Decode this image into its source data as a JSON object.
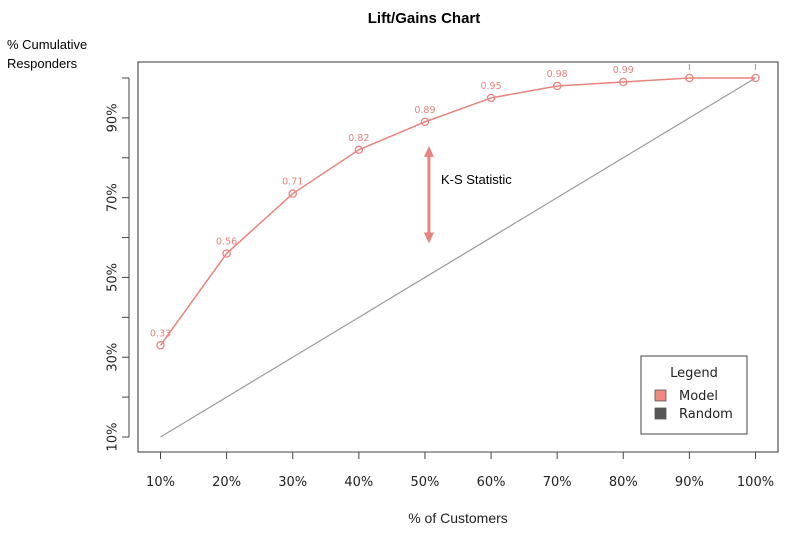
{
  "chart_data": {
    "type": "line",
    "title": "Lift/Gains Chart",
    "ylabel": [
      "% Cumulative",
      "Responders"
    ],
    "xlabel": "% of Customers",
    "categories": [
      "10%",
      "20%",
      "30%",
      "40%",
      "50%",
      "60%",
      "70%",
      "80%",
      "90%",
      "100%"
    ],
    "x": [
      10,
      20,
      30,
      40,
      50,
      60,
      70,
      80,
      90,
      100
    ],
    "xlim": [
      8,
      100
    ],
    "ylim": [
      7,
      102
    ],
    "yticks": [
      10,
      30,
      50,
      70,
      90
    ],
    "ytick_labels": [
      "10%",
      "30%",
      "50%",
      "70%",
      "90%"
    ],
    "series": [
      {
        "name": "Model",
        "color": "#e8837d",
        "values": [
          33,
          56,
          71,
          82,
          89,
          95,
          98,
          99,
          100,
          100
        ],
        "labels": [
          "0.33",
          "0.56",
          "0.71",
          "0.82",
          "0.89",
          "0.95",
          "0.98",
          "0.99",
          "",
          ""
        ]
      },
      {
        "name": "Random",
        "color": "#9a9a9a",
        "values": [
          10,
          20,
          30,
          40,
          50,
          60,
          70,
          80,
          90,
          100
        ]
      }
    ],
    "annotation": {
      "text": "K-S Statistic",
      "x": 50,
      "y_from": 57,
      "y_to": 85
    },
    "legend": {
      "title": "Legend",
      "position": "bottom-right",
      "entries": [
        {
          "label": "Model",
          "color": "#f0897f"
        },
        {
          "label": "Random",
          "color": "#555555"
        }
      ]
    },
    "grid": false
  }
}
